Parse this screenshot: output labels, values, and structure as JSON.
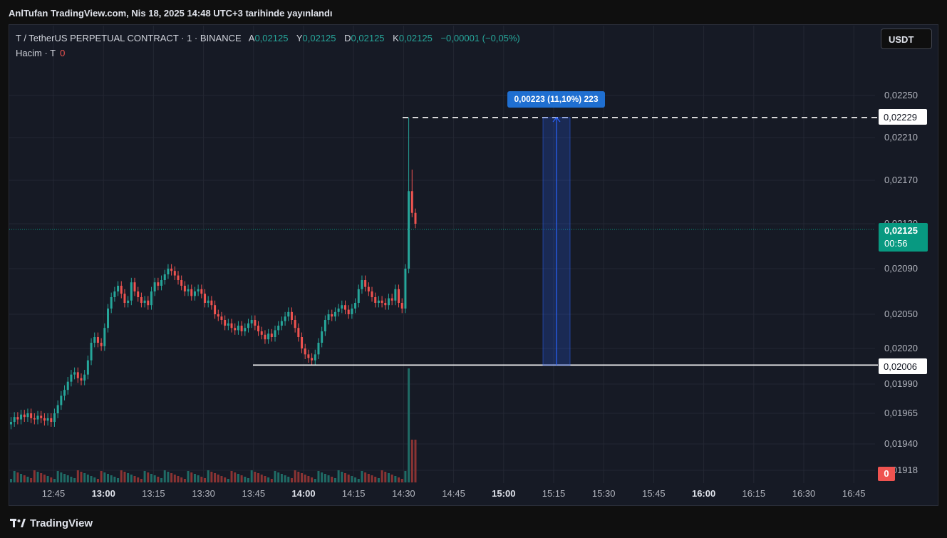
{
  "header": {
    "publish_text": "AnlTufan TradingView.com, Nis 18, 2025 14:48 UTC+3 tarihinde yayınlandı"
  },
  "legend": {
    "symbol": "T / TetherUS PERPETUAL CONTRACT · 1 · BINANCE",
    "open_label": "A",
    "open_value": "0,02125",
    "high_label": "Y",
    "high_value": "0,02125",
    "low_label": "D",
    "low_value": "0,02125",
    "close_label": "K",
    "close_value": "0,02125",
    "change": "−0,00001 (−0,05%)",
    "volume_label": "Hacim · T",
    "volume_value": "0"
  },
  "currency_button": "USDT",
  "price_axis_labels": [
    "0,02250",
    "0,02210",
    "0,02170",
    "0,02130",
    "0,02090",
    "0,02050",
    "0,02020",
    "0,01990",
    "0,01965",
    "0,01940",
    "0,01918"
  ],
  "price_tags": {
    "high_line": "0,02229",
    "low_line": "0,02006",
    "last_price": "0,02125",
    "countdown": "00:56",
    "volume_last": "0"
  },
  "measure": {
    "label": "0,00223 (11,10%) 223"
  },
  "time_axis_labels": [
    {
      "text": "12:45",
      "major": false
    },
    {
      "text": "13:00",
      "major": true
    },
    {
      "text": "13:15",
      "major": false
    },
    {
      "text": "13:30",
      "major": false
    },
    {
      "text": "13:45",
      "major": false
    },
    {
      "text": "14:00",
      "major": true
    },
    {
      "text": "14:15",
      "major": false
    },
    {
      "text": "14:30",
      "major": false
    },
    {
      "text": "14:45",
      "major": false
    },
    {
      "text": "15:00",
      "major": true
    },
    {
      "text": "15:15",
      "major": false
    },
    {
      "text": "15:30",
      "major": false
    },
    {
      "text": "15:45",
      "major": false
    },
    {
      "text": "16:00",
      "major": true
    },
    {
      "text": "16:15",
      "major": false
    },
    {
      "text": "16:30",
      "major": false
    },
    {
      "text": "16:45",
      "major": false
    }
  ],
  "footer": {
    "brand": "TradingView"
  },
  "colors": {
    "up": "#26a69a",
    "down": "#ef5350",
    "background": "#161a25",
    "grid": "#232733",
    "measure": "#2962ff"
  },
  "chart_data": {
    "type": "candlestick",
    "interval": "1m",
    "y_axis": "price (USDT)",
    "close_series": [
      0.01958,
      0.01962,
      0.0196,
      0.01964,
      0.01962,
      0.01965,
      0.01961,
      0.0196,
      0.01963,
      0.01961,
      0.01959,
      0.01961,
      0.01958,
      0.01965,
      0.01972,
      0.0198,
      0.01985,
      0.01992,
      0.01998,
      0.02,
      0.01995,
      0.01993,
      0.01998,
      0.0201,
      0.02025,
      0.0203,
      0.02025,
      0.02022,
      0.02038,
      0.02055,
      0.02065,
      0.0207,
      0.02075,
      0.02068,
      0.0206,
      0.02062,
      0.02078,
      0.0207,
      0.02065,
      0.0206,
      0.02062,
      0.02058,
      0.0207,
      0.02078,
      0.02075,
      0.0208,
      0.02085,
      0.0209,
      0.02088,
      0.02084,
      0.0208,
      0.02075,
      0.0207,
      0.02072,
      0.02066,
      0.0207,
      0.02072,
      0.02068,
      0.0206,
      0.02062,
      0.02058,
      0.0205,
      0.02048,
      0.02045,
      0.0204,
      0.02042,
      0.02038,
      0.02036,
      0.0204,
      0.02035,
      0.02038,
      0.02042,
      0.02045,
      0.0204,
      0.02035,
      0.02032,
      0.02028,
      0.02033,
      0.0203,
      0.02036,
      0.0204,
      0.02044,
      0.02048,
      0.02052,
      0.02045,
      0.02038,
      0.0203,
      0.0202,
      0.02015,
      0.02012,
      0.0201,
      0.02015,
      0.02025,
      0.02035,
      0.02045,
      0.0205,
      0.02048,
      0.02052,
      0.02055,
      0.02058,
      0.02054,
      0.0205,
      0.02055,
      0.0206,
      0.02072,
      0.0208,
      0.02074,
      0.0207,
      0.02065,
      0.0206,
      0.02062,
      0.0206,
      0.02058,
      0.02064,
      0.02062,
      0.02072,
      0.0206,
      0.02055,
      0.0209,
      0.0216,
      0.0214,
      0.0213
    ],
    "key_levels": {
      "high_marker": 0.02229,
      "low_marker": 0.02006,
      "last": 0.02125
    },
    "measure": {
      "price_change": 0.00223,
      "percent": 11.1,
      "ticks": 223
    },
    "grid": true,
    "legend_position": "top-left"
  }
}
